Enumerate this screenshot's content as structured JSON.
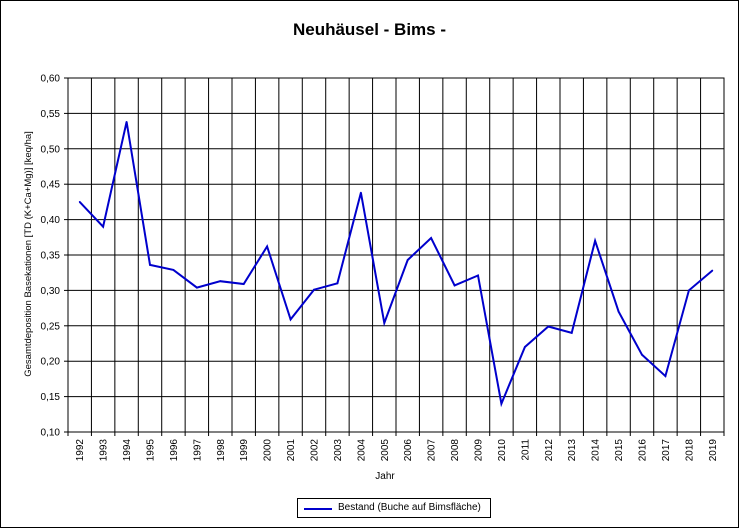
{
  "chart_data": {
    "type": "line",
    "title": "Neuhäusel - Bims -",
    "xlabel": "Jahr",
    "ylabel": "Gesamtdeposition Basekationen [TD (K+Ca+Mg)] [keq/ha]",
    "ylim": [
      0.1,
      0.6
    ],
    "yticks": [
      "0,10",
      "0,15",
      "0,20",
      "0,25",
      "0,30",
      "0,35",
      "0,40",
      "0,45",
      "0,50",
      "0,55",
      "0,60"
    ],
    "categories": [
      "1992",
      "1993",
      "1994",
      "1995",
      "1996",
      "1997",
      "1998",
      "1999",
      "2000",
      "2001",
      "2002",
      "2003",
      "2004",
      "2005",
      "2006",
      "2007",
      "2008",
      "2009",
      "2010",
      "2011",
      "2012",
      "2013",
      "2014",
      "2015",
      "2016",
      "2017",
      "2018",
      "2019"
    ],
    "series": [
      {
        "name": "Bestand (Buche auf Bimsfläche)",
        "color": "#0000cc",
        "values": [
          0.425,
          0.39,
          0.538,
          0.336,
          0.329,
          0.304,
          0.313,
          0.309,
          0.362,
          0.259,
          0.301,
          0.31,
          0.438,
          0.254,
          0.343,
          0.374,
          0.307,
          0.321,
          0.14,
          0.22,
          0.249,
          0.24,
          0.37,
          0.27,
          0.209,
          0.179,
          0.3,
          0.328
        ]
      }
    ],
    "grid": true,
    "legend_position": "bottom"
  }
}
